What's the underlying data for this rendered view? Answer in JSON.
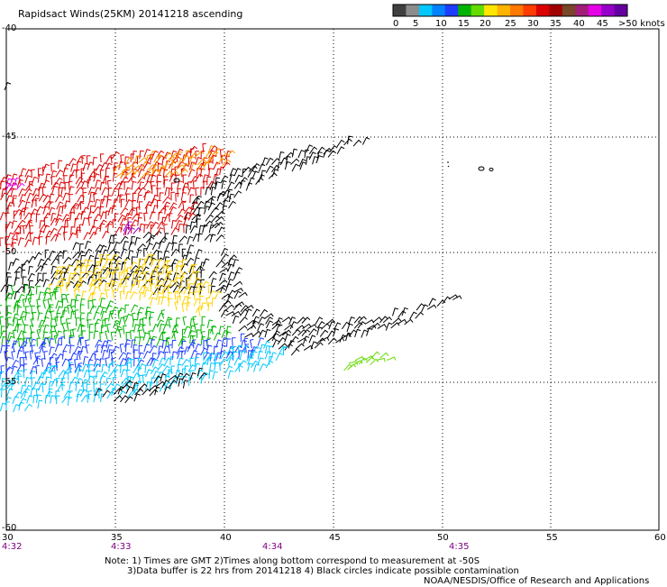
{
  "title": "Rapidsact Winds(25KM) 20141218 ascending",
  "colorbar": {
    "colors": [
      "#404040",
      "#8c8c8c",
      "#00c8ff",
      "#0082ff",
      "#1e3cff",
      "#00b400",
      "#64dc00",
      "#ffe600",
      "#ffb400",
      "#ff7800",
      "#ff3c00",
      "#dc0000",
      "#a00000",
      "#784628",
      "#a01e78",
      "#e600e6",
      "#9600c8",
      "#6400a0"
    ],
    "labels": [
      "0",
      "5",
      "10",
      "15",
      "20",
      "25",
      "30",
      "35",
      "40",
      "45",
      ">50 knots"
    ]
  },
  "lon_ticks": [
    "30",
    "35",
    "40",
    "45",
    "50",
    "55",
    "60"
  ],
  "lat_ticks": [
    "-40",
    "-45",
    "-50",
    "-55",
    "-60"
  ],
  "time_labels": [
    "4:32",
    "4:33",
    "4:34",
    "4:35"
  ],
  "notes": {
    "line1": "Note: 1) Times are GMT 2)Times along bottom correspond to measurement at -50S",
    "line2": "3)Data buffer is 22 hrs from 20141218 4) Black circles indicate possible contamination",
    "line3": "NOAA/NESDIS/Office of Research and Applications"
  },
  "map": {
    "lon_range": [
      30,
      60
    ],
    "lat_range": [
      -40,
      -60
    ],
    "wind_barb_regions": [
      {
        "region": "northern swath east",
        "speed_knots": "0-5",
        "color": "#000000"
      },
      {
        "region": "southern swath",
        "speed_knots": "0-5",
        "color": "#000000"
      },
      {
        "region": "north-west",
        "speed_knots": "30-40",
        "color": "#dc0000"
      },
      {
        "region": "middle-west",
        "speed_knots": "20-25",
        "color": "#ffd200"
      },
      {
        "region": "south-west",
        "speed_knots": "15-20",
        "color": "#00b400"
      },
      {
        "region": "far south-west",
        "speed_knots": "10-15",
        "color": "#1e3cff"
      },
      {
        "region": "southern edge",
        "speed_knots": "5-10",
        "color": "#00c8ff"
      }
    ]
  }
}
